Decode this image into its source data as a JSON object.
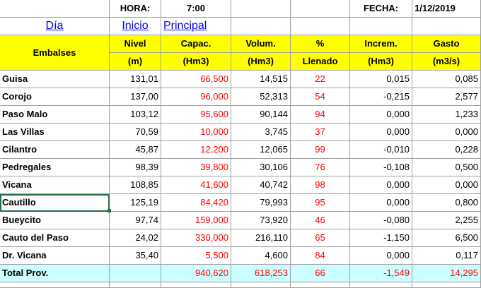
{
  "top": {
    "hora_label": "HORA:",
    "hora_value": "7:00",
    "fecha_label": "FECHA:",
    "fecha_value": "1/12/2019"
  },
  "links": {
    "dia": "Día",
    "inicio": "Inicio",
    "principal": "Principal"
  },
  "header": {
    "embalses": "Embalses",
    "nivel": "Nivel",
    "nivel_unit": "(m)",
    "capac": "Capac.",
    "capac_unit": "(Hm3)",
    "volum": "Volum.",
    "volum_unit": "(Hm3)",
    "llenado": "%",
    "llenado_unit": "Llenado",
    "increm": "Increm.",
    "increm_unit": "(Hm3)",
    "gasto": "Gasto",
    "gasto_unit": "(m3/s)"
  },
  "rows": [
    {
      "name": "Guisa",
      "nivel": "131,01",
      "capac": "66,500",
      "volum": "14,515",
      "pct": "22",
      "increm": "0,015",
      "gasto": "0,085"
    },
    {
      "name": "Corojo",
      "nivel": "137,00",
      "capac": "96,000",
      "volum": "52,313",
      "pct": "54",
      "increm": "-0,215",
      "gasto": "2,577"
    },
    {
      "name": "Paso Malo",
      "nivel": "103,12",
      "capac": "95,600",
      "volum": "90,144",
      "pct": "94",
      "increm": "0,000",
      "gasto": "1,233"
    },
    {
      "name": "Las Villas",
      "nivel": "70,59",
      "capac": "10,000",
      "volum": "3,745",
      "pct": "37",
      "increm": "0,000",
      "gasto": "0,000"
    },
    {
      "name": "Cilantro",
      "nivel": "45,87",
      "capac": "12,200",
      "volum": "12,065",
      "pct": "99",
      "increm": "-0,010",
      "gasto": "0,228"
    },
    {
      "name": "Pedregales",
      "nivel": "98,39",
      "capac": "39,800",
      "volum": "30,106",
      "pct": "76",
      "increm": "-0,108",
      "gasto": "0,500"
    },
    {
      "name": "Vicana",
      "nivel": "108,85",
      "capac": "41,600",
      "volum": "40,742",
      "pct": "98",
      "increm": "0,000",
      "gasto": "0,000"
    },
    {
      "name": "Cautillo",
      "nivel": "125,19",
      "capac": "84,420",
      "volum": "79,993",
      "pct": "95",
      "increm": "0,000",
      "gasto": "0,800"
    },
    {
      "name": "Bueycito",
      "nivel": "97,74",
      "capac": "159,000",
      "volum": "73,920",
      "pct": "46",
      "increm": "-0,080",
      "gasto": "2,255"
    },
    {
      "name": "Cauto del Paso",
      "nivel": "24,02",
      "capac": "330,000",
      "volum": "216,110",
      "pct": "65",
      "increm": "-1,150",
      "gasto": "6,500"
    },
    {
      "name": "Dr. Vicana",
      "nivel": "35,40",
      "capac": "5,500",
      "volum": "4,600",
      "pct": "84",
      "increm": "0,000",
      "gasto": "0,117"
    }
  ],
  "total": {
    "name": "Total Prov.",
    "nivel": "",
    "capac": "940,620",
    "volum": "618,253",
    "pct": "66",
    "increm": "-1,549",
    "gasto": "14,295"
  },
  "colors": {
    "header_bg": "#ffff00",
    "total_bg": "#ccffff",
    "value_red": "#ff0000",
    "link": "#0000ee",
    "selection": "#1e7145"
  }
}
